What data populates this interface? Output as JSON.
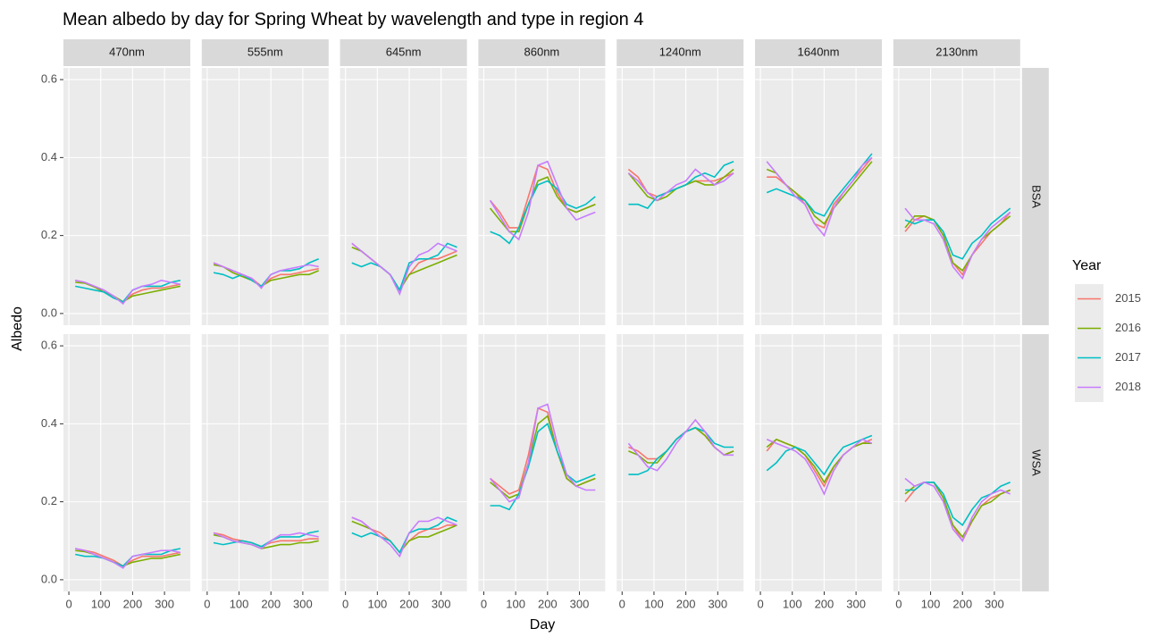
{
  "chart_data": {
    "type": "line",
    "title": "Mean albedo by day for Spring Wheat by wavelength and type in region 4",
    "x_label": "Day",
    "y_label": "Albedo",
    "legend_title": "Year",
    "legend_position": "right",
    "grid": true,
    "columns": [
      "470nm",
      "555nm",
      "645nm",
      "860nm",
      "1240nm",
      "1640nm",
      "2130nm"
    ],
    "rows": [
      "BSA",
      "WSA"
    ],
    "xlim": [
      -17,
      381
    ],
    "xticks": [
      0,
      100,
      200,
      300
    ],
    "ylim": [
      -0.03,
      0.63
    ],
    "yticks": [
      {
        "value": 0,
        "label": "0.0"
      },
      0.2,
      0.4,
      0.6
    ],
    "x": [
      20,
      50,
      80,
      110,
      140,
      170,
      200,
      230,
      260,
      290,
      320,
      350
    ],
    "series": [
      {
        "name": "2015",
        "color": "#F8766D",
        "values": [
          [
            [
              0.085,
              0.08,
              0.07,
              0.06,
              0.045,
              0.03,
              0.05,
              0.06,
              0.065,
              0.065,
              0.07,
              0.075
            ],
            [
              0.13,
              0.12,
              0.11,
              0.1,
              0.09,
              0.07,
              0.09,
              0.1,
              0.1,
              0.105,
              0.11,
              0.115
            ],
            [
              0.18,
              0.16,
              0.14,
              0.12,
              0.1,
              0.06,
              0.1,
              0.13,
              0.14,
              0.14,
              0.15,
              0.16
            ],
            [
              0.29,
              0.26,
              0.22,
              0.22,
              0.3,
              0.38,
              0.37,
              0.31,
              0.27,
              0.26,
              0.27,
              0.28
            ],
            [
              0.37,
              0.35,
              0.31,
              0.3,
              0.31,
              0.32,
              0.33,
              0.34,
              0.34,
              0.34,
              0.35,
              0.36
            ],
            [
              0.35,
              0.35,
              0.33,
              0.31,
              0.28,
              0.23,
              0.22,
              0.28,
              0.31,
              0.34,
              0.37,
              0.4
            ],
            [
              0.21,
              0.24,
              0.25,
              0.24,
              0.2,
              0.13,
              0.1,
              0.15,
              0.18,
              0.21,
              0.23,
              0.26
            ]
          ],
          [
            [
              0.08,
              0.075,
              0.07,
              0.06,
              0.05,
              0.035,
              0.05,
              0.06,
              0.06,
              0.06,
              0.065,
              0.07
            ],
            [
              0.12,
              0.115,
              0.105,
              0.1,
              0.095,
              0.085,
              0.095,
              0.1,
              0.1,
              0.1,
              0.105,
              0.105
            ],
            [
              0.16,
              0.15,
              0.13,
              0.12,
              0.1,
              0.07,
              0.1,
              0.12,
              0.13,
              0.13,
              0.14,
              0.14
            ],
            [
              0.26,
              0.24,
              0.22,
              0.23,
              0.32,
              0.44,
              0.43,
              0.33,
              0.26,
              0.24,
              0.25,
              0.26
            ],
            [
              0.34,
              0.33,
              0.31,
              0.31,
              0.33,
              0.36,
              0.38,
              0.39,
              0.37,
              0.34,
              0.32,
              0.33
            ],
            [
              0.33,
              0.36,
              0.35,
              0.34,
              0.32,
              0.28,
              0.24,
              0.29,
              0.32,
              0.34,
              0.35,
              0.36
            ],
            [
              0.2,
              0.23,
              0.25,
              0.25,
              0.21,
              0.14,
              0.1,
              0.15,
              0.19,
              0.21,
              0.22,
              0.23
            ]
          ]
        ]
      },
      {
        "name": "2016",
        "color": "#7CAE00",
        "values": [
          [
            [
              0.08,
              0.078,
              0.068,
              0.055,
              0.045,
              0.03,
              0.045,
              0.05,
              0.055,
              0.06,
              0.065,
              0.07
            ],
            [
              0.125,
              0.12,
              0.105,
              0.095,
              0.085,
              0.07,
              0.085,
              0.09,
              0.095,
              0.1,
              0.1,
              0.11
            ],
            [
              0.17,
              0.16,
              0.14,
              0.12,
              0.1,
              0.06,
              0.1,
              0.11,
              0.12,
              0.13,
              0.14,
              0.15
            ],
            [
              0.27,
              0.24,
              0.21,
              0.21,
              0.28,
              0.34,
              0.35,
              0.3,
              0.27,
              0.26,
              0.27,
              0.28
            ],
            [
              0.36,
              0.33,
              0.3,
              0.29,
              0.3,
              0.32,
              0.33,
              0.34,
              0.33,
              0.33,
              0.35,
              0.37
            ],
            [
              0.37,
              0.36,
              0.33,
              0.31,
              0.29,
              0.25,
              0.23,
              0.27,
              0.3,
              0.33,
              0.36,
              0.39
            ],
            [
              0.22,
              0.25,
              0.25,
              0.24,
              0.2,
              0.13,
              0.11,
              0.15,
              0.19,
              0.21,
              0.23,
              0.25
            ]
          ],
          [
            [
              0.075,
              0.072,
              0.065,
              0.055,
              0.045,
              0.035,
              0.045,
              0.05,
              0.055,
              0.055,
              0.06,
              0.065
            ],
            [
              0.115,
              0.11,
              0.1,
              0.095,
              0.09,
              0.08,
              0.085,
              0.09,
              0.09,
              0.095,
              0.095,
              0.1
            ],
            [
              0.15,
              0.14,
              0.13,
              0.11,
              0.1,
              0.07,
              0.1,
              0.11,
              0.11,
              0.12,
              0.13,
              0.14
            ],
            [
              0.25,
              0.23,
              0.21,
              0.22,
              0.3,
              0.4,
              0.42,
              0.33,
              0.26,
              0.24,
              0.25,
              0.26
            ],
            [
              0.33,
              0.32,
              0.3,
              0.3,
              0.33,
              0.36,
              0.38,
              0.39,
              0.37,
              0.34,
              0.32,
              0.33
            ],
            [
              0.34,
              0.36,
              0.35,
              0.34,
              0.32,
              0.29,
              0.25,
              0.29,
              0.32,
              0.34,
              0.35,
              0.35
            ],
            [
              0.22,
              0.24,
              0.25,
              0.25,
              0.21,
              0.14,
              0.11,
              0.15,
              0.19,
              0.2,
              0.22,
              0.23
            ]
          ]
        ]
      },
      {
        "name": "2017",
        "color": "#00BFC4",
        "values": [
          [
            [
              0.07,
              0.065,
              0.06,
              0.055,
              0.04,
              0.03,
              0.06,
              0.07,
              0.07,
              0.07,
              0.08,
              0.085
            ],
            [
              0.105,
              0.1,
              0.09,
              0.1,
              0.085,
              0.07,
              0.1,
              0.11,
              0.11,
              0.115,
              0.13,
              0.14
            ],
            [
              0.13,
              0.12,
              0.13,
              0.12,
              0.1,
              0.06,
              0.13,
              0.14,
              0.14,
              0.15,
              0.18,
              0.17
            ],
            [
              0.21,
              0.2,
              0.18,
              0.22,
              0.28,
              0.33,
              0.34,
              0.32,
              0.28,
              0.27,
              0.28,
              0.3
            ],
            [
              0.28,
              0.28,
              0.27,
              0.3,
              0.31,
              0.32,
              0.33,
              0.35,
              0.36,
              0.35,
              0.38,
              0.39
            ],
            [
              0.31,
              0.32,
              0.31,
              0.3,
              0.29,
              0.26,
              0.25,
              0.29,
              0.32,
              0.35,
              0.38,
              0.41
            ],
            [
              0.24,
              0.23,
              0.24,
              0.24,
              0.21,
              0.15,
              0.14,
              0.18,
              0.2,
              0.23,
              0.25,
              0.27
            ]
          ],
          [
            [
              0.065,
              0.06,
              0.06,
              0.055,
              0.045,
              0.035,
              0.06,
              0.065,
              0.065,
              0.065,
              0.075,
              0.08
            ],
            [
              0.095,
              0.09,
              0.095,
              0.1,
              0.095,
              0.085,
              0.1,
              0.11,
              0.11,
              0.11,
              0.12,
              0.125
            ],
            [
              0.12,
              0.11,
              0.12,
              0.11,
              0.1,
              0.07,
              0.12,
              0.13,
              0.13,
              0.14,
              0.16,
              0.15
            ],
            [
              0.19,
              0.19,
              0.18,
              0.22,
              0.29,
              0.38,
              0.4,
              0.33,
              0.27,
              0.25,
              0.26,
              0.27
            ],
            [
              0.27,
              0.27,
              0.28,
              0.31,
              0.33,
              0.36,
              0.38,
              0.39,
              0.38,
              0.35,
              0.34,
              0.34
            ],
            [
              0.28,
              0.3,
              0.33,
              0.34,
              0.33,
              0.3,
              0.27,
              0.31,
              0.34,
              0.35,
              0.36,
              0.37
            ],
            [
              0.23,
              0.23,
              0.25,
              0.25,
              0.22,
              0.16,
              0.14,
              0.18,
              0.21,
              0.22,
              0.24,
              0.25
            ]
          ]
        ]
      },
      {
        "name": "2018",
        "color": "#C77CFF",
        "values": [
          [
            [
              0.085,
              0.08,
              0.07,
              0.06,
              0.045,
              0.025,
              0.06,
              0.07,
              0.075,
              0.085,
              0.08,
              0.075
            ],
            [
              0.13,
              0.12,
              0.11,
              0.1,
              0.09,
              0.065,
              0.1,
              0.11,
              0.115,
              0.12,
              0.125,
              0.12
            ],
            [
              0.18,
              0.16,
              0.14,
              0.12,
              0.1,
              0.05,
              0.12,
              0.15,
              0.16,
              0.18,
              0.17,
              0.16
            ],
            [
              0.29,
              0.25,
              0.21,
              0.19,
              0.26,
              0.38,
              0.39,
              0.33,
              0.27,
              0.24,
              0.25,
              0.26
            ],
            [
              0.36,
              0.34,
              0.31,
              0.29,
              0.31,
              0.33,
              0.34,
              0.37,
              0.35,
              0.33,
              0.34,
              0.36
            ],
            [
              0.39,
              0.36,
              0.33,
              0.3,
              0.28,
              0.23,
              0.2,
              0.27,
              0.31,
              0.34,
              0.38,
              0.4
            ],
            [
              0.27,
              0.24,
              0.24,
              0.23,
              0.19,
              0.12,
              0.09,
              0.15,
              0.19,
              0.22,
              0.24,
              0.26
            ]
          ],
          [
            [
              0.08,
              0.075,
              0.065,
              0.055,
              0.045,
              0.03,
              0.06,
              0.065,
              0.07,
              0.075,
              0.075,
              0.07
            ],
            [
              0.12,
              0.11,
              0.1,
              0.095,
              0.09,
              0.08,
              0.1,
              0.115,
              0.115,
              0.12,
              0.115,
              0.11
            ],
            [
              0.16,
              0.15,
              0.13,
              0.11,
              0.09,
              0.06,
              0.12,
              0.15,
              0.15,
              0.16,
              0.15,
              0.14
            ],
            [
              0.26,
              0.23,
              0.2,
              0.21,
              0.3,
              0.44,
              0.45,
              0.35,
              0.27,
              0.24,
              0.23,
              0.23
            ],
            [
              0.35,
              0.32,
              0.29,
              0.28,
              0.31,
              0.35,
              0.38,
              0.41,
              0.38,
              0.34,
              0.32,
              0.32
            ],
            [
              0.36,
              0.35,
              0.34,
              0.33,
              0.31,
              0.27,
              0.22,
              0.28,
              0.32,
              0.34,
              0.36,
              0.35
            ],
            [
              0.26,
              0.24,
              0.25,
              0.24,
              0.2,
              0.13,
              0.1,
              0.16,
              0.2,
              0.22,
              0.23,
              0.22
            ]
          ]
        ]
      }
    ]
  }
}
